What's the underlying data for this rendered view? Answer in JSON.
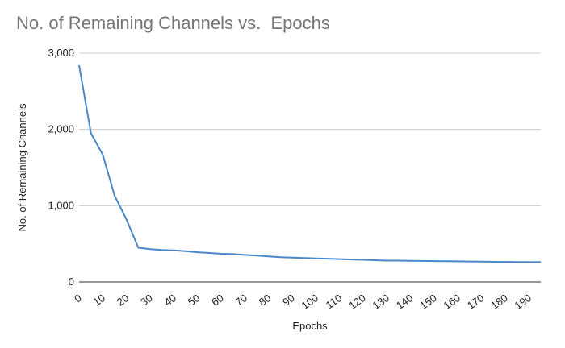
{
  "chart_data": {
    "type": "line",
    "title": "No. of Remaining Channels vs.  Epochs",
    "xlabel": "Epochs",
    "ylabel": "No. of Remaining Channels",
    "xlim": [
      0,
      195
    ],
    "ylim": [
      0,
      3000
    ],
    "x_ticks": [
      0,
      10,
      20,
      30,
      40,
      50,
      60,
      70,
      80,
      90,
      100,
      110,
      120,
      130,
      140,
      150,
      160,
      170,
      180,
      190
    ],
    "y_ticks": [
      0,
      1000,
      2000,
      3000
    ],
    "y_tick_labels": [
      "0",
      "1,000",
      "2,000",
      "3,000"
    ],
    "grid": "horizontal",
    "line_color": "#4a86c8",
    "series": [
      {
        "x": [
          0,
          5,
          10,
          15,
          20,
          25,
          30,
          35,
          40,
          45,
          50,
          55,
          60,
          65,
          70,
          75,
          80,
          85,
          90,
          95,
          100,
          105,
          110,
          115,
          120,
          125,
          130,
          135,
          140,
          145,
          150,
          155,
          160,
          165,
          170,
          175,
          180,
          185,
          190,
          195
        ],
        "values": [
          2840,
          1950,
          1670,
          1130,
          820,
          450,
          430,
          420,
          415,
          405,
          390,
          380,
          370,
          365,
          355,
          345,
          335,
          325,
          320,
          315,
          310,
          305,
          300,
          295,
          290,
          285,
          280,
          280,
          278,
          276,
          274,
          272,
          270,
          268,
          266,
          264,
          263,
          262,
          261,
          260
        ]
      }
    ]
  }
}
